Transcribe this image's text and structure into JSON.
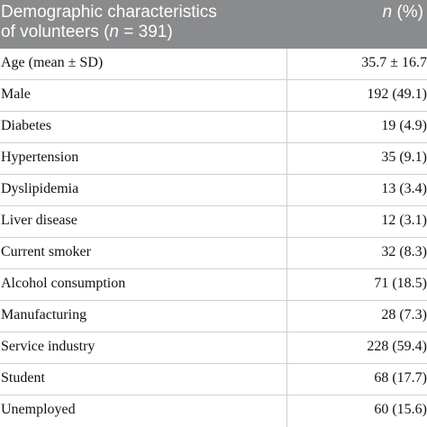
{
  "header": {
    "left_line1": "Demographic characteristics",
    "left_line2_pre": "of volunteers (",
    "left_line2_n": "n",
    "left_line2_post": " = 391)",
    "right_n": "n",
    "right_post": " (%)"
  },
  "rows": [
    {
      "label": "Age (mean ± SD)",
      "value": "35.7 ± 16.7"
    },
    {
      "label": "Male",
      "value": "192 (49.1)"
    },
    {
      "label": "Diabetes",
      "value": "19 (4.9)"
    },
    {
      "label": "Hypertension",
      "value": "35 (9.1)"
    },
    {
      "label": "Dyslipidemia",
      "value": "13 (3.4)"
    },
    {
      "label": "Liver disease",
      "value": "12 (3.1)"
    },
    {
      "label": "Current smoker",
      "value": "32 (8.3)"
    },
    {
      "label": "Alcohol consumption",
      "value": "71 (18.5)"
    },
    {
      "label": "Manufacturing",
      "value": "28 (7.3)"
    },
    {
      "label": "Service industry",
      "value": "228 (59.4)"
    },
    {
      "label": "Student",
      "value": "68 (17.7)"
    },
    {
      "label": "Unemployed",
      "value": "60 (15.6)"
    }
  ]
}
